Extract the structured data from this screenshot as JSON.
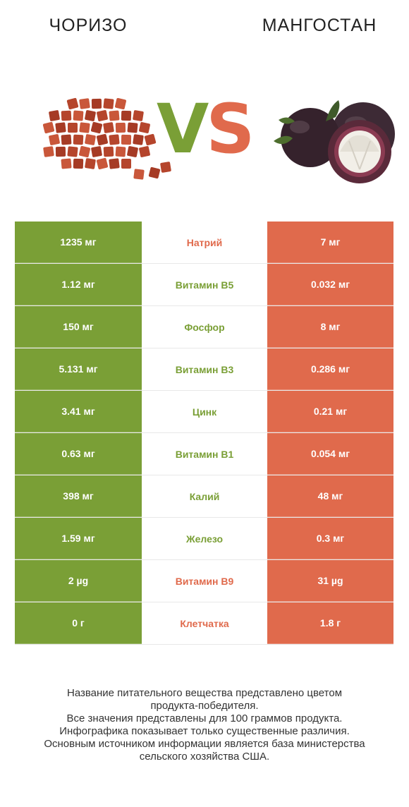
{
  "left_title": "ЧОРИЗО",
  "right_title": "МАНГОСТАН",
  "vs": {
    "v": "V",
    "s": "S"
  },
  "colors": {
    "winner_left": "#7a9f36",
    "winner_right": "#e06a4c"
  },
  "rows": [
    {
      "left": "1235 мг",
      "nutrient": "Натрий",
      "right": "7 мг",
      "winner": "right"
    },
    {
      "left": "1.12 мг",
      "nutrient": "Витамин B5",
      "right": "0.032 мг",
      "winner": "left"
    },
    {
      "left": "150 мг",
      "nutrient": "Фосфор",
      "right": "8 мг",
      "winner": "left"
    },
    {
      "left": "5.131 мг",
      "nutrient": "Витамин B3",
      "right": "0.286 мг",
      "winner": "left"
    },
    {
      "left": "3.41 мг",
      "nutrient": "Цинк",
      "right": "0.21 мг",
      "winner": "left"
    },
    {
      "left": "0.63 мг",
      "nutrient": "Витамин B1",
      "right": "0.054 мг",
      "winner": "left"
    },
    {
      "left": "398 мг",
      "nutrient": "Калий",
      "right": "48 мг",
      "winner": "left"
    },
    {
      "left": "1.59 мг",
      "nutrient": "Железо",
      "right": "0.3 мг",
      "winner": "left"
    },
    {
      "left": "2 µg",
      "nutrient": "Витамин B9",
      "right": "31 µg",
      "winner": "right"
    },
    {
      "left": "0 г",
      "nutrient": "Клетчатка",
      "right": "1.8 г",
      "winner": "right"
    }
  ],
  "footer": [
    "Название питательного вещества представлено цветом",
    "продукта-победителя.",
    "Все значения представлены для 100 граммов продукта.",
    "Инфографика показывает только существенные различия.",
    "Основным источником информации является база министерства",
    "сельского хозяйства США."
  ]
}
